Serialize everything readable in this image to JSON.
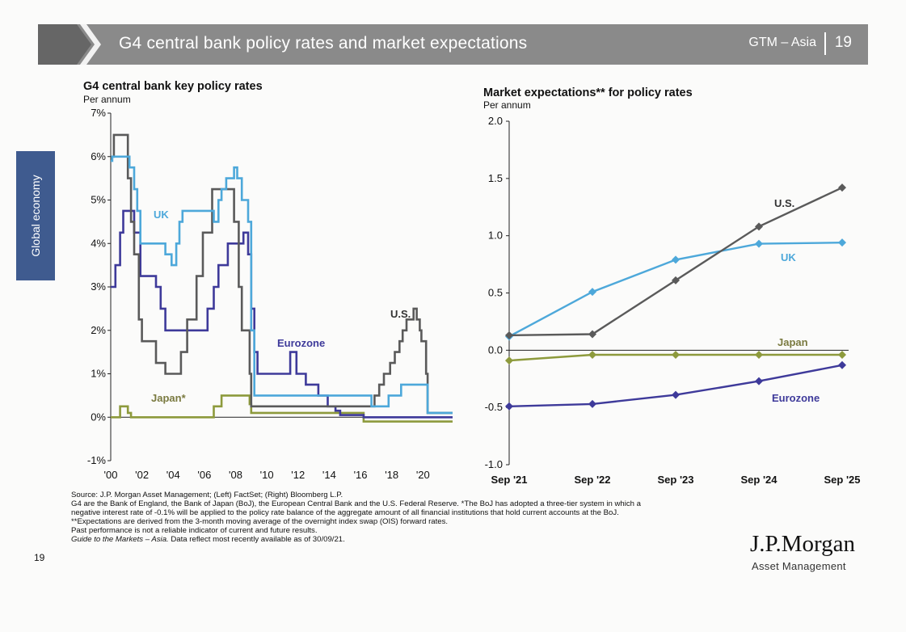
{
  "header": {
    "title": "G4 central bank policy rates and market expectations",
    "deck": "GTM – Asia",
    "page_number": "19"
  },
  "side_tab": {
    "label": "Global economy"
  },
  "left_chart": {
    "title": "G4 central bank key policy rates",
    "subtitle": "Per annum"
  },
  "right_chart": {
    "title": "Market expectations** for policy rates",
    "subtitle": "Per annum"
  },
  "colors": {
    "uk": "#4da8da",
    "us": "#5a5a5a",
    "eurozone": "#3e3a9a",
    "japan": "#8d9a3c"
  },
  "chart_data": [
    {
      "type": "line",
      "title": "G4 central bank key policy rates",
      "subtitle": "Per annum",
      "x_ticks": [
        "'00",
        "'02",
        "'04",
        "'06",
        "'08",
        "'10",
        "'12",
        "'14",
        "'16",
        "'18",
        "'20"
      ],
      "y_ticks": [
        "-1%",
        "0%",
        "1%",
        "2%",
        "3%",
        "4%",
        "5%",
        "6%",
        "7%"
      ],
      "ylim": [
        -1,
        7
      ],
      "xlim": [
        2000,
        2021.9
      ],
      "series": [
        {
          "name": "UK",
          "points": [
            [
              2000,
              5.9
            ],
            [
              2000.1,
              6.0
            ],
            [
              2001.1,
              6.0
            ],
            [
              2001.2,
              5.75
            ],
            [
              2001.5,
              5.25
            ],
            [
              2001.7,
              4.75
            ],
            [
              2001.9,
              4.0
            ],
            [
              2003.1,
              4.0
            ],
            [
              2003.5,
              3.75
            ],
            [
              2003.9,
              3.5
            ],
            [
              2004.2,
              4.0
            ],
            [
              2004.4,
              4.5
            ],
            [
              2004.6,
              4.75
            ],
            [
              2005.6,
              4.75
            ],
            [
              2006.6,
              4.5
            ],
            [
              2006.9,
              5.0
            ],
            [
              2007.1,
              5.25
            ],
            [
              2007.4,
              5.5
            ],
            [
              2007.9,
              5.75
            ],
            [
              2008.1,
              5.5
            ],
            [
              2008.4,
              5.0
            ],
            [
              2008.8,
              4.5
            ],
            [
              2009.0,
              2.0
            ],
            [
              2009.2,
              0.5
            ],
            [
              2016.6,
              0.5
            ],
            [
              2016.7,
              0.25
            ],
            [
              2017.8,
              0.5
            ],
            [
              2018.6,
              0.75
            ],
            [
              2020.2,
              0.75
            ],
            [
              2020.3,
              0.1
            ],
            [
              2021.9,
              0.1
            ]
          ]
        },
        {
          "name": "U.S.",
          "points": [
            [
              2000,
              6.0
            ],
            [
              2000.2,
              6.5
            ],
            [
              2000.9,
              6.5
            ],
            [
              2001.1,
              5.5
            ],
            [
              2001.3,
              4.5
            ],
            [
              2001.5,
              3.75
            ],
            [
              2001.8,
              2.25
            ],
            [
              2002.0,
              1.75
            ],
            [
              2002.9,
              1.25
            ],
            [
              2003.5,
              1.0
            ],
            [
              2004.5,
              1.5
            ],
            [
              2004.9,
              2.25
            ],
            [
              2005.5,
              3.25
            ],
            [
              2005.9,
              4.25
            ],
            [
              2006.5,
              5.25
            ],
            [
              2007.7,
              5.25
            ],
            [
              2007.9,
              4.5
            ],
            [
              2008.2,
              3.0
            ],
            [
              2008.4,
              2.0
            ],
            [
              2008.9,
              1.0
            ],
            [
              2009.0,
              0.25
            ],
            [
              2015.9,
              0.25
            ],
            [
              2016.9,
              0.5
            ],
            [
              2017.2,
              0.75
            ],
            [
              2017.5,
              1.0
            ],
            [
              2017.9,
              1.25
            ],
            [
              2018.2,
              1.5
            ],
            [
              2018.5,
              1.75
            ],
            [
              2018.7,
              2.0
            ],
            [
              2018.95,
              2.25
            ],
            [
              2019.4,
              2.5
            ],
            [
              2019.6,
              2.25
            ],
            [
              2019.8,
              2.0
            ],
            [
              2019.9,
              1.75
            ],
            [
              2020.2,
              1.0
            ],
            [
              2020.3,
              0.1
            ],
            [
              2021.9,
              0.1
            ]
          ]
        },
        {
          "name": "Eurozone",
          "points": [
            [
              2000,
              3.0
            ],
            [
              2000.3,
              3.5
            ],
            [
              2000.6,
              4.25
            ],
            [
              2000.8,
              4.75
            ],
            [
              2001.3,
              4.75
            ],
            [
              2001.5,
              4.25
            ],
            [
              2001.9,
              3.25
            ],
            [
              2002.9,
              3.0
            ],
            [
              2003.2,
              2.5
            ],
            [
              2003.5,
              2.0
            ],
            [
              2005.9,
              2.0
            ],
            [
              2006.2,
              2.5
            ],
            [
              2006.6,
              3.0
            ],
            [
              2006.9,
              3.5
            ],
            [
              2007.5,
              4.0
            ],
            [
              2008.5,
              4.25
            ],
            [
              2008.8,
              3.75
            ],
            [
              2009.0,
              2.5
            ],
            [
              2009.2,
              1.5
            ],
            [
              2009.4,
              1.0
            ],
            [
              2011.3,
              1.0
            ],
            [
              2011.5,
              1.5
            ],
            [
              2011.9,
              1.0
            ],
            [
              2012.5,
              0.75
            ],
            [
              2013.3,
              0.5
            ],
            [
              2013.9,
              0.25
            ],
            [
              2014.4,
              0.15
            ],
            [
              2014.7,
              0.05
            ],
            [
              2016.2,
              0.0
            ],
            [
              2021.9,
              0.0
            ]
          ]
        },
        {
          "name": "Japan*",
          "points": [
            [
              2000,
              0.0
            ],
            [
              2000.6,
              0.25
            ],
            [
              2001.1,
              0.1
            ],
            [
              2001.3,
              0.0
            ],
            [
              2006.5,
              0.0
            ],
            [
              2006.6,
              0.25
            ],
            [
              2007.1,
              0.5
            ],
            [
              2008.8,
              0.5
            ],
            [
              2008.9,
              0.3
            ],
            [
              2009.0,
              0.1
            ],
            [
              2016.1,
              0.1
            ],
            [
              2016.2,
              -0.1
            ],
            [
              2021.9,
              -0.1
            ]
          ]
        }
      ],
      "annotations": [
        "UK",
        "U.S.",
        "Eurozone",
        "Japan*"
      ]
    },
    {
      "type": "line",
      "title": "Market expectations** for policy rates",
      "subtitle": "Per annum",
      "categories": [
        "Sep '21",
        "Sep '22",
        "Sep '23",
        "Sep '24",
        "Sep '25"
      ],
      "y_ticks": [
        "-1.0",
        "-0.5",
        "0.0",
        "0.5",
        "1.0",
        "1.5",
        "2.0"
      ],
      "ylim": [
        -1.0,
        2.0
      ],
      "series": [
        {
          "name": "U.S.",
          "values": [
            0.13,
            0.14,
            0.61,
            1.08,
            1.42
          ]
        },
        {
          "name": "UK",
          "values": [
            0.12,
            0.51,
            0.79,
            0.93,
            0.94
          ]
        },
        {
          "name": "Japan",
          "values": [
            -0.09,
            -0.04,
            -0.04,
            -0.04,
            -0.04
          ]
        },
        {
          "name": "Eurozone",
          "values": [
            -0.49,
            -0.47,
            -0.39,
            -0.27,
            -0.13
          ]
        }
      ]
    }
  ],
  "footnotes": [
    "Source: J.P. Morgan Asset Management; (Left) FactSet; (Right) Bloomberg L.P.",
    "G4 are the Bank of England, the Bank of Japan (BoJ), the European Central Bank and the U.S. Federal Reserve. *The BoJ has adopted a three-tier system in which a",
    "negative interest rate of -0.1% will be applied to the policy rate balance of the aggregate amount of all financial institutions that hold current accounts at the BoJ.",
    "**Expectations are derived from the 3-month moving average of the overnight index swap (OIS) forward rates.",
    "Past performance is not a reliable indicator of current and future results."
  ],
  "footnote_last": {
    "italic": "Guide to the Markets – Asia.",
    "rest": " Data reflect most recently available as of 30/09/21."
  },
  "page_number_bottom": "19",
  "logo": {
    "name": "J.P.Morgan",
    "tagline": "Asset Management"
  }
}
